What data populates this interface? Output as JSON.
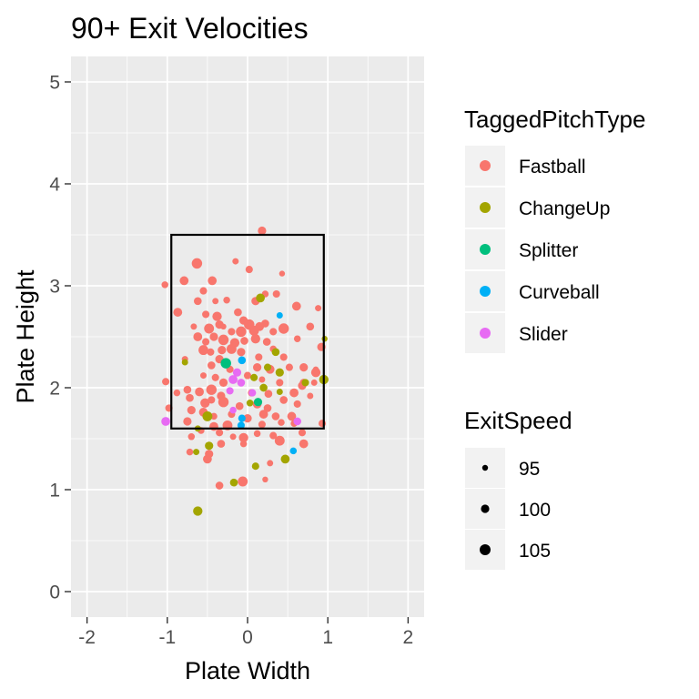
{
  "chart_data": {
    "type": "scatter",
    "title": "90+ Exit Velocities",
    "xlabel": "Plate Width",
    "ylabel": "Plate Height",
    "xlim": [
      -2.2,
      2.2
    ],
    "ylim": [
      -0.25,
      5.25
    ],
    "x_ticks": [
      -2,
      -1,
      0,
      1,
      2
    ],
    "x_tick_labels": [
      "-2",
      "-1",
      "0",
      "1",
      "2"
    ],
    "y_ticks": [
      0,
      1,
      2,
      3,
      4,
      5
    ],
    "y_tick_labels": [
      "0",
      "1",
      "2",
      "3",
      "4",
      "5"
    ],
    "grid": true,
    "legend_position": "right",
    "strike_zone": {
      "x0": -0.95,
      "x1": 0.95,
      "y0": 1.6,
      "y1": 3.5
    },
    "color_legend": {
      "title": "TaggedPitchType",
      "entries": [
        {
          "label": "Fastball",
          "color": "#F8766D"
        },
        {
          "label": "ChangeUp",
          "color": "#A3A500"
        },
        {
          "label": "Splitter",
          "color": "#00BF7D"
        },
        {
          "label": "Curveball",
          "color": "#00B0F6"
        },
        {
          "label": "Slider",
          "color": "#E76BF3"
        }
      ]
    },
    "size_legend": {
      "title": "ExitSpeed",
      "entries": [
        {
          "label": "95",
          "value": 95
        },
        {
          "label": "100",
          "value": 100
        },
        {
          "label": "105",
          "value": 105
        }
      ]
    },
    "series": [
      {
        "name": "Fastball",
        "color": "#F8766D",
        "points": [
          [
            0.18,
            3.54,
            100
          ],
          [
            -0.63,
            3.22,
            104
          ],
          [
            -0.79,
            3.05,
            101
          ],
          [
            -1.03,
            3.01,
            97
          ],
          [
            -0.15,
            3.24,
            96
          ],
          [
            0.02,
            3.16,
            98
          ],
          [
            -0.44,
            3.05,
            101
          ],
          [
            -0.55,
            2.95,
            98
          ],
          [
            0.22,
            2.92,
            97
          ],
          [
            -0.62,
            2.85,
            99
          ],
          [
            -0.4,
            2.85,
            96
          ],
          [
            -0.26,
            2.86,
            97
          ],
          [
            0.1,
            2.85,
            100
          ],
          [
            0.36,
            2.92,
            98
          ],
          [
            0.61,
            2.8,
            101
          ],
          [
            0.88,
            2.78,
            96
          ],
          [
            -0.87,
            2.74,
            101
          ],
          [
            -0.52,
            2.72,
            98
          ],
          [
            -0.38,
            2.7,
            102
          ],
          [
            -0.12,
            2.74,
            99
          ],
          [
            -0.05,
            2.66,
            100
          ],
          [
            0.02,
            2.62,
            104
          ],
          [
            0.15,
            2.6,
            101
          ],
          [
            0.22,
            2.63,
            99
          ],
          [
            -0.67,
            2.6,
            96
          ],
          [
            -0.48,
            2.58,
            103
          ],
          [
            -0.35,
            2.62,
            100
          ],
          [
            -0.2,
            2.55,
            98
          ],
          [
            -0.08,
            2.55,
            104
          ],
          [
            0.08,
            2.56,
            103
          ],
          [
            0.32,
            2.55,
            98
          ],
          [
            0.45,
            2.58,
            104
          ],
          [
            0.78,
            2.6,
            99
          ],
          [
            -0.62,
            2.5,
            101
          ],
          [
            -0.52,
            2.45,
            98
          ],
          [
            -0.42,
            2.5,
            100
          ],
          [
            -0.3,
            2.47,
            104
          ],
          [
            -0.16,
            2.44,
            102
          ],
          [
            -0.04,
            2.46,
            99
          ],
          [
            0.1,
            2.48,
            102
          ],
          [
            0.24,
            2.45,
            99
          ],
          [
            0.32,
            2.38,
            97
          ],
          [
            0.62,
            2.48,
            97
          ],
          [
            0.92,
            2.4,
            100
          ],
          [
            -0.55,
            2.37,
            103
          ],
          [
            -0.46,
            2.35,
            98
          ],
          [
            -0.32,
            2.37,
            100
          ],
          [
            -0.2,
            2.38,
            103
          ],
          [
            -0.08,
            2.35,
            100
          ],
          [
            0.14,
            2.3,
            98
          ],
          [
            0.45,
            2.3,
            98
          ],
          [
            -0.78,
            2.28,
            96
          ],
          [
            -0.45,
            2.22,
            99
          ],
          [
            -0.35,
            2.28,
            100
          ],
          [
            -0.22,
            2.18,
            98
          ],
          [
            0.12,
            2.2,
            100
          ],
          [
            0.28,
            2.18,
            101
          ],
          [
            0.52,
            2.2,
            98
          ],
          [
            0.7,
            2.2,
            100
          ],
          [
            0.85,
            2.15,
            102
          ],
          [
            -0.55,
            2.12,
            96
          ],
          [
            -0.4,
            2.1,
            98
          ],
          [
            -0.3,
            2.05,
            100
          ],
          [
            0.0,
            2.12,
            98
          ],
          [
            0.18,
            2.08,
            96
          ],
          [
            0.4,
            2.05,
            98
          ],
          [
            0.7,
            2.05,
            99
          ],
          [
            0.83,
            2.05,
            96
          ],
          [
            -1.02,
            2.06,
            98
          ],
          [
            -0.75,
            1.98,
            99
          ],
          [
            -0.6,
            1.96,
            101
          ],
          [
            -0.45,
            1.98,
            104
          ],
          [
            -0.33,
            1.92,
            100
          ],
          [
            0.05,
            1.95,
            98
          ],
          [
            0.26,
            1.94,
            99
          ],
          [
            0.58,
            1.95,
            101
          ],
          [
            0.68,
            2.02,
            100
          ],
          [
            0.78,
            1.92,
            96
          ],
          [
            -0.88,
            1.95,
            97
          ],
          [
            -0.72,
            1.9,
            99
          ],
          [
            -0.53,
            1.85,
            102
          ],
          [
            -0.45,
            1.88,
            98
          ],
          [
            -0.3,
            1.86,
            104
          ],
          [
            -0.1,
            1.82,
            99
          ],
          [
            0.12,
            1.84,
            101
          ],
          [
            0.25,
            1.8,
            99
          ],
          [
            0.45,
            1.88,
            99
          ],
          [
            0.62,
            1.84,
            98
          ],
          [
            -0.98,
            1.8,
            98
          ],
          [
            -0.7,
            1.78,
            100
          ],
          [
            -0.55,
            1.76,
            101
          ],
          [
            -0.42,
            1.72,
            97
          ],
          [
            -0.2,
            1.74,
            98
          ],
          [
            0.0,
            1.7,
            100
          ],
          [
            0.2,
            1.74,
            101
          ],
          [
            0.35,
            1.72,
            99
          ],
          [
            0.55,
            1.72,
            101
          ],
          [
            -0.75,
            1.67,
            100
          ],
          [
            -0.42,
            1.62,
            101
          ],
          [
            -0.25,
            1.63,
            103
          ],
          [
            0.18,
            1.64,
            98
          ],
          [
            0.42,
            1.66,
            97
          ],
          [
            0.58,
            1.65,
            97
          ],
          [
            0.93,
            1.65,
            98
          ],
          [
            -0.58,
            1.58,
            97
          ],
          [
            -0.35,
            1.56,
            98
          ],
          [
            -0.18,
            1.52,
            96
          ],
          [
            -0.05,
            1.51,
            102
          ],
          [
            0.12,
            1.55,
            97
          ],
          [
            0.32,
            1.53,
            98
          ],
          [
            0.68,
            1.56,
            98
          ],
          [
            -0.7,
            1.52,
            97
          ],
          [
            -0.33,
            1.45,
            99
          ],
          [
            -0.05,
            1.45,
            97
          ],
          [
            0.4,
            1.48,
            103
          ],
          [
            0.7,
            1.45,
            101
          ],
          [
            -0.72,
            1.37,
            97
          ],
          [
            -0.48,
            1.35,
            100
          ],
          [
            -0.5,
            1.3,
            101
          ],
          [
            0.28,
            1.26,
            96
          ],
          [
            -0.06,
            1.08,
            103
          ],
          [
            -0.35,
            1.04,
            99
          ],
          [
            0.22,
            1.1,
            95
          ],
          [
            0.43,
            3.12,
            95
          ],
          [
            -0.3,
            2.6,
            95
          ],
          [
            0.85,
            2.18,
            95
          ]
        ]
      },
      {
        "name": "ChangeUp",
        "color": "#A3A500",
        "points": [
          [
            0.16,
            2.88,
            101
          ],
          [
            0.35,
            2.35,
            99
          ],
          [
            -0.78,
            2.25,
            96
          ],
          [
            0.25,
            2.2,
            98
          ],
          [
            0.4,
            2.15,
            100
          ],
          [
            0.08,
            2.1,
            98
          ],
          [
            0.95,
            2.08,
            102
          ],
          [
            0.72,
            2.05,
            98
          ],
          [
            0.4,
            1.96,
            96
          ],
          [
            0.2,
            2.0,
            99
          ],
          [
            0.03,
            1.85,
            97
          ],
          [
            -0.5,
            1.72,
            103
          ],
          [
            -0.62,
            1.6,
            96
          ],
          [
            -0.48,
            1.43,
            100
          ],
          [
            -0.64,
            1.37,
            96
          ],
          [
            0.1,
            1.23,
            98
          ],
          [
            0.47,
            1.3,
            101
          ],
          [
            -0.17,
            1.07,
            99
          ],
          [
            -0.62,
            0.79,
            102
          ],
          [
            0.96,
            2.48,
            95
          ]
        ]
      },
      {
        "name": "Splitter",
        "color": "#00BF7D",
        "points": [
          [
            -0.27,
            2.24,
            104
          ],
          [
            0.13,
            1.86,
            100
          ]
        ]
      },
      {
        "name": "Curveball",
        "color": "#00B0F6",
        "points": [
          [
            -0.07,
            2.27,
            99
          ],
          [
            0.4,
            2.71,
            96
          ],
          [
            -0.07,
            1.7,
            98
          ],
          [
            -0.08,
            1.63,
            98
          ],
          [
            0.57,
            1.38,
            97
          ]
        ]
      },
      {
        "name": "Slider",
        "color": "#E76BF3",
        "points": [
          [
            -1.02,
            1.67,
            101
          ],
          [
            -0.13,
            2.15,
            100
          ],
          [
            -0.18,
            2.08,
            101
          ],
          [
            -0.08,
            2.05,
            99
          ],
          [
            -0.22,
            1.97,
            98
          ],
          [
            0.06,
            1.95,
            98
          ],
          [
            0.62,
            1.67,
            99
          ],
          [
            -0.18,
            1.78,
            97
          ]
        ]
      }
    ]
  }
}
